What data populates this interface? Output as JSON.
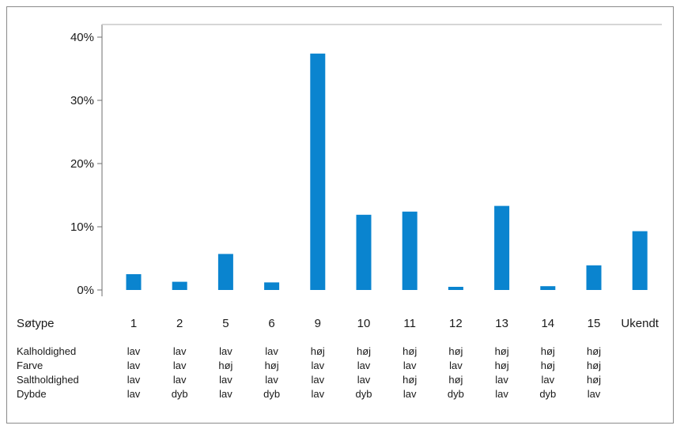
{
  "chart_data": {
    "type": "bar",
    "categories": [
      "1",
      "2",
      "5",
      "6",
      "9",
      "10",
      "11",
      "12",
      "13",
      "14",
      "15",
      "Ukendt"
    ],
    "values": [
      2.5,
      1.3,
      5.7,
      1.2,
      37.4,
      11.9,
      12.4,
      0.5,
      13.3,
      0.6,
      3.9,
      9.3
    ],
    "xlabel": "Søtype",
    "ylim": [
      0,
      40
    ],
    "yticks": [
      0,
      10,
      20,
      30,
      40
    ],
    "ytick_labels": [
      "0%",
      "10%",
      "20%",
      "30%",
      "40%"
    ],
    "grid": false,
    "bar_color": "#0a84cf",
    "table": {
      "rows": [
        {
          "label": "Kalholdighed",
          "values": [
            "lav",
            "lav",
            "lav",
            "lav",
            "høj",
            "høj",
            "høj",
            "høj",
            "høj",
            "høj",
            "høj",
            ""
          ]
        },
        {
          "label": "Farve",
          "values": [
            "lav",
            "lav",
            "høj",
            "høj",
            "lav",
            "lav",
            "lav",
            "lav",
            "høj",
            "høj",
            "høj",
            ""
          ]
        },
        {
          "label": "Saltholdighed",
          "values": [
            "lav",
            "lav",
            "lav",
            "lav",
            "lav",
            "lav",
            "høj",
            "høj",
            "lav",
            "lav",
            "høj",
            ""
          ]
        },
        {
          "label": "Dybde",
          "values": [
            "lav",
            "dyb",
            "lav",
            "dyb",
            "lav",
            "dyb",
            "lav",
            "dyb",
            "lav",
            "dyb",
            "lav",
            ""
          ]
        }
      ]
    }
  }
}
